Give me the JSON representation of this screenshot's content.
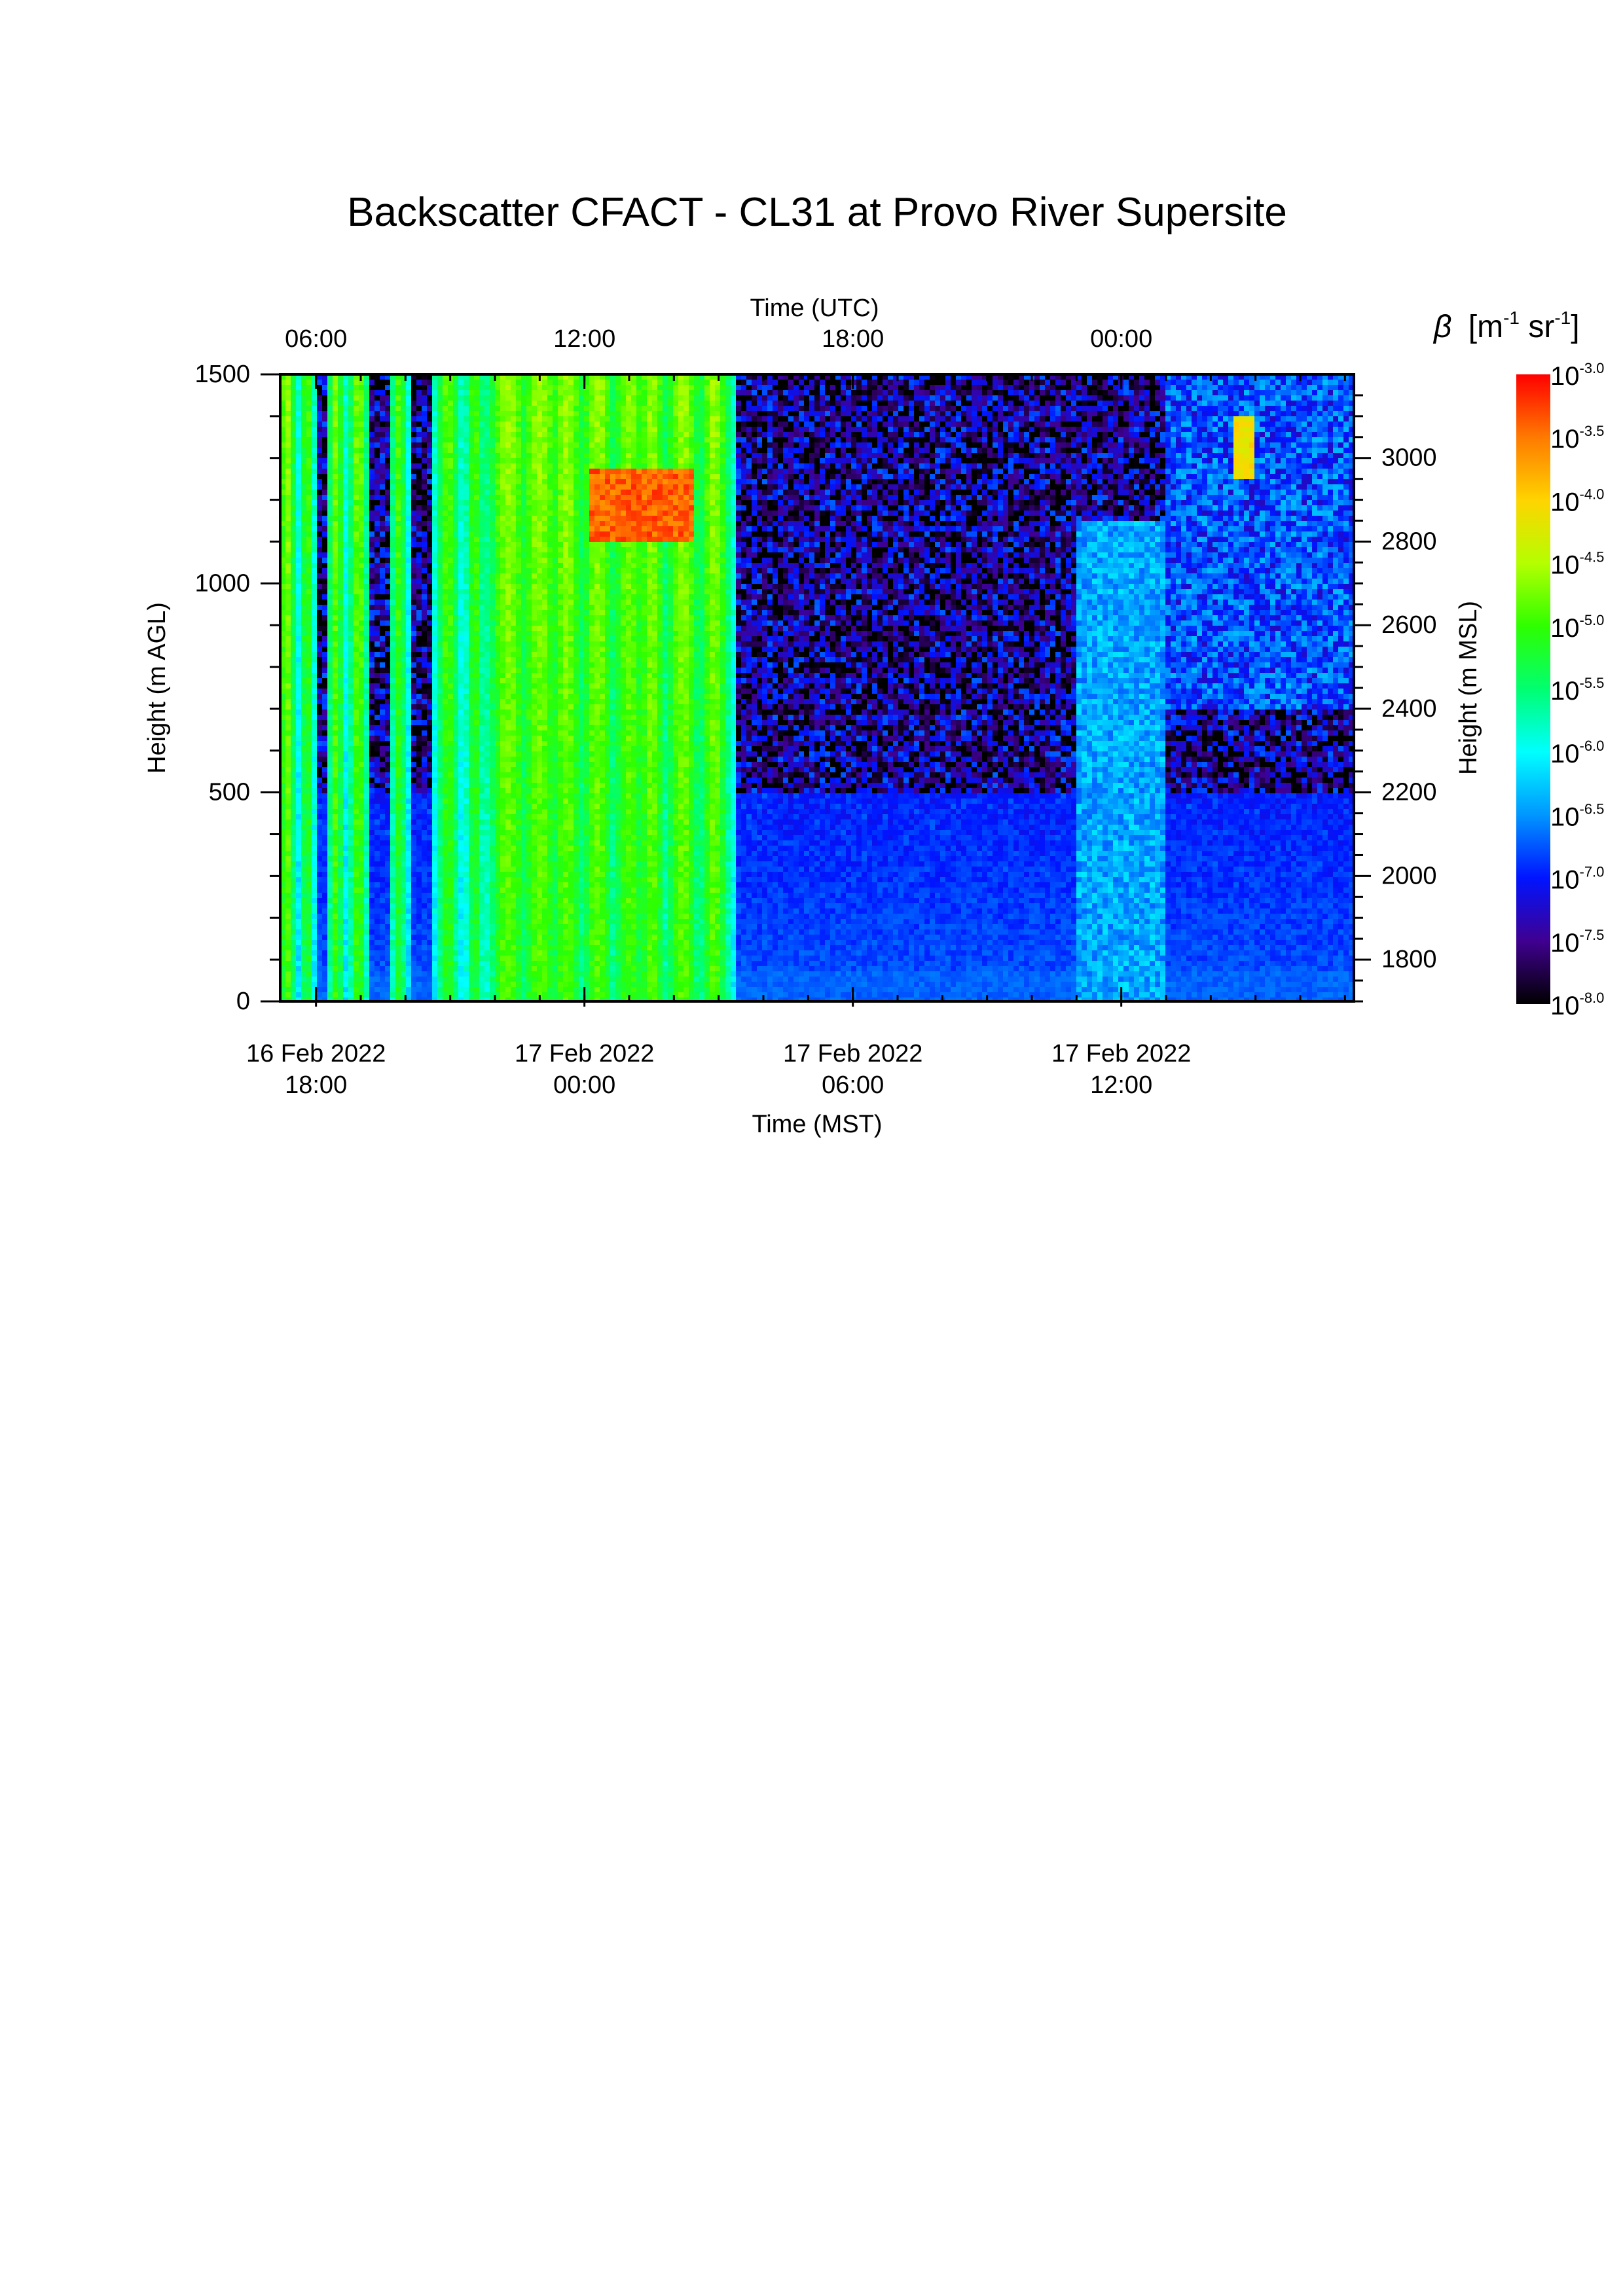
{
  "chart_data": {
    "type": "heatmap",
    "title": "Backscatter CFACT - CL31 at Provo River Supersite",
    "x_bottom": {
      "label": "Time (MST)",
      "ticks": [
        {
          "date": "16 Feb 2022",
          "time": "18:00",
          "hours": 0
        },
        {
          "date": "17 Feb 2022",
          "time": "00:00",
          "hours": 6
        },
        {
          "date": "17 Feb 2022",
          "time": "06:00",
          "hours": 12
        },
        {
          "date": "17 Feb 2022",
          "time": "12:00",
          "hours": 18
        }
      ],
      "range_hours": [
        -0.8,
        23.2
      ]
    },
    "x_top": {
      "label": "Time (UTC)",
      "ticks": [
        {
          "label": "06:00",
          "hours": 0
        },
        {
          "label": "12:00",
          "hours": 6
        },
        {
          "label": "18:00",
          "hours": 12
        },
        {
          "label": "00:00",
          "hours": 18
        }
      ]
    },
    "y_left": {
      "label": "Height (m AGL)",
      "range": [
        0,
        1500
      ],
      "ticks": [
        0,
        500,
        1000,
        1500
      ]
    },
    "y_right": {
      "label": "Height (m MSL)",
      "range": [
        1700,
        3200
      ],
      "ticks": [
        1800,
        2000,
        2200,
        2400,
        2600,
        2800,
        3000
      ]
    },
    "colorbar": {
      "label": "β [m-1 sr-1]",
      "symbol": "β",
      "unit_parts": [
        "[m",
        "-1",
        " sr",
        "-1",
        "]"
      ],
      "scale": "log",
      "base": "10",
      "exponents": [
        "-3.0",
        "-3.5",
        "-4.0",
        "-4.5",
        "-5.0",
        "-5.5",
        "-6.0",
        "-6.5",
        "-7.0",
        "-7.5",
        "-8.0"
      ],
      "colors": [
        "#ff0000",
        "#ff7a00",
        "#ffd400",
        "#b4ff00",
        "#2eff00",
        "#00ff70",
        "#00ffff",
        "#0096ff",
        "#0014ff",
        "#400090",
        "#000000"
      ]
    },
    "features": [
      {
        "name": "plumes",
        "time_hours": [
          -0.8,
          9.5
        ],
        "height_m": [
          0,
          1500
        ],
        "log10_beta": -5.0
      },
      {
        "name": "cloud layer",
        "time_hours": [
          6.1,
          8.5
        ],
        "height_m": [
          1100,
          1250
        ],
        "log10_beta": -3.3
      },
      {
        "name": "near-surface layer",
        "time_hours": [
          -0.8,
          23.2
        ],
        "height_m": [
          0,
          500
        ],
        "log10_beta": -6.8
      }
    ]
  }
}
